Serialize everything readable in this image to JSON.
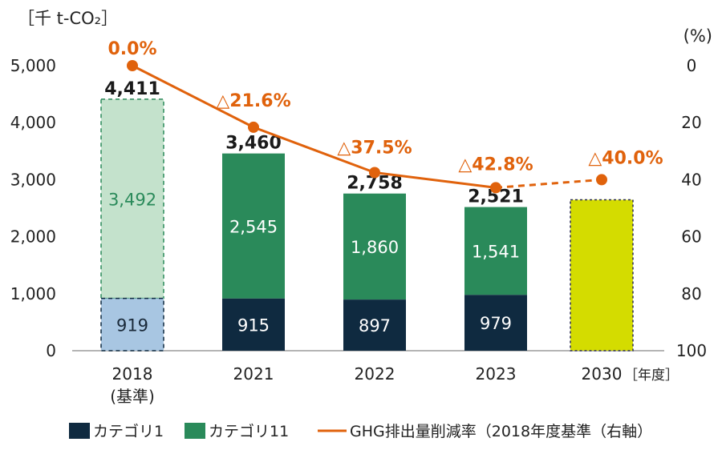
{
  "chart_data": {
    "type": "bar",
    "unit_label": "［千 t-CO₂］",
    "right_unit_label": "(%)",
    "year_unit": "［年度］",
    "categories": [
      "2018",
      "2021",
      "2022",
      "2023",
      "2030"
    ],
    "category_sublabels": [
      "(基準)",
      "",
      "",
      "",
      ""
    ],
    "ylim": [
      0,
      5000
    ],
    "y_ticks": [
      "5,000",
      "4,000",
      "3,000",
      "2,000",
      "1,000",
      "0"
    ],
    "y2lim": [
      0,
      100
    ],
    "y2_ticks": [
      "0",
      "20",
      "40",
      "60",
      "80",
      "100"
    ],
    "series": [
      {
        "name": "カテゴリ1",
        "values": [
          919,
          915,
          897,
          979,
          null
        ],
        "labels": [
          "919",
          "915",
          "897",
          "979",
          ""
        ]
      },
      {
        "name": "カテゴリ11",
        "values": [
          3492,
          2545,
          1860,
          1541,
          null
        ],
        "labels": [
          "3,492",
          "2,545",
          "1,860",
          "1,541",
          ""
        ]
      }
    ],
    "totals": [
      4411,
      3460,
      2758,
      2521,
      null
    ],
    "total_labels": [
      "4,411",
      "3,460",
      "2,758",
      "2,521",
      ""
    ],
    "target_2030_value": 2647,
    "reduction_line": {
      "name": "GHG排出量削減率（2018年度基準（右軸）",
      "values": [
        0.0,
        21.6,
        37.5,
        42.8,
        40.0
      ],
      "labels": [
        "0.0%",
        "△21.6%",
        "△37.5%",
        "△42.8%",
        "△40.0%"
      ],
      "dashed_last_segment": true
    },
    "legend": [
      "カテゴリ1",
      "カテゴリ11",
      "GHG排出量削減率（2018年度基準（右軸）"
    ],
    "colors": {
      "cat1": "#0f2a40",
      "cat11": "#2a8a5a",
      "cat1_base": "#a8c6e2",
      "cat11_base": "#c4e2cc",
      "target": "#d4dc00",
      "line": "#e0620c",
      "total_text": "#1a1a1a"
    }
  }
}
